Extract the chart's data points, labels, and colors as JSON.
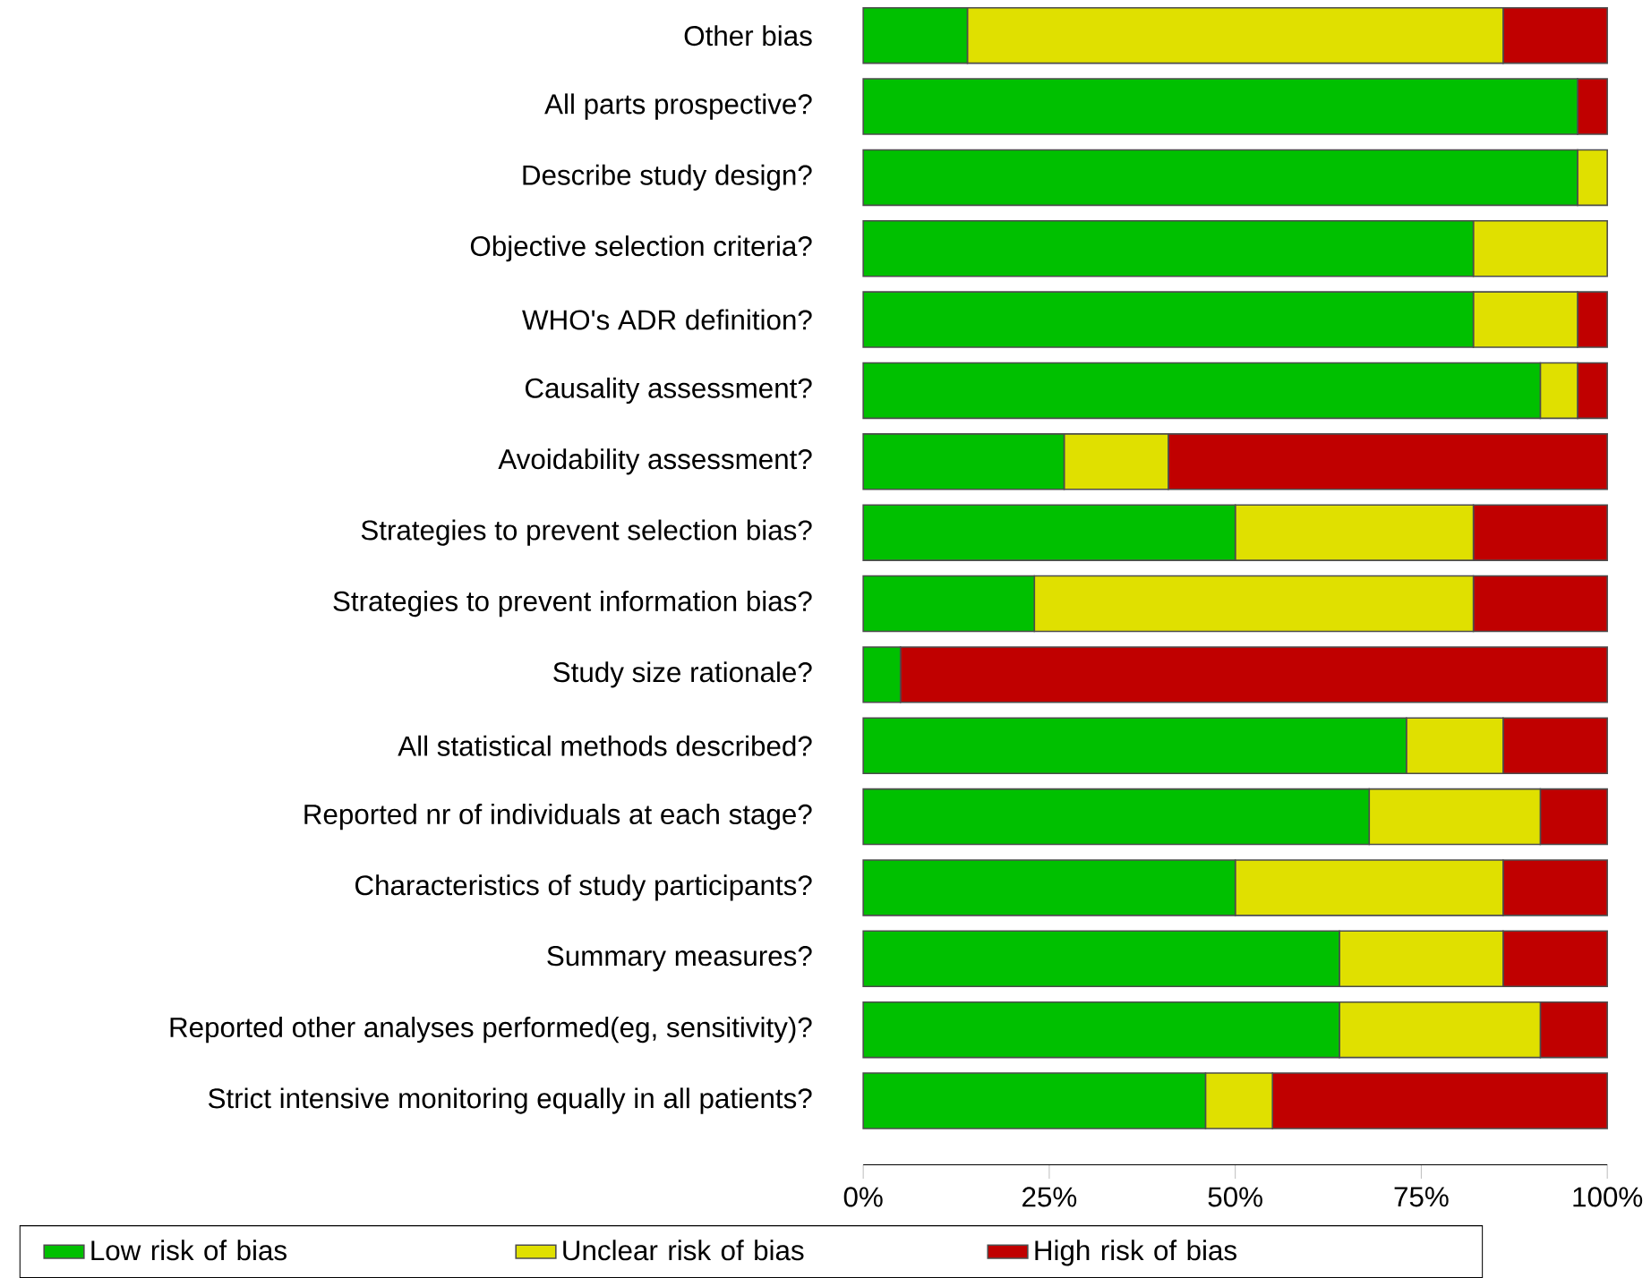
{
  "chart_data": {
    "type": "bar",
    "orientation": "horizontal",
    "stacked": true,
    "legend": "bottom",
    "categories": [
      "Other bias",
      "All parts prospective?",
      "Describe study design?",
      "Objective selection criteria?",
      "WHO's ADR definition?",
      "Causality assessment?",
      "Avoidability assessment?",
      "Strategies to prevent selection bias?",
      "Strategies to prevent information bias?",
      "Study size rationale?",
      "All statistical methods described?",
      "Reported nr of individuals at each stage?",
      "Characteristics of study participants?",
      "Summary measures?",
      "Reported other analyses performed(eg, sensitivity)?",
      "Strict intensive monitoring equally in all patients?"
    ],
    "series": [
      {
        "name": "Low risk of bias",
        "color": "#00c000",
        "values": [
          14,
          96,
          96,
          82,
          82,
          91,
          27,
          50,
          23,
          5,
          73,
          68,
          50,
          64,
          64,
          46
        ]
      },
      {
        "name": "Unclear risk of bias",
        "color": "#e0e000",
        "values": [
          72,
          0,
          4,
          18,
          14,
          5,
          14,
          32,
          59,
          0,
          13,
          23,
          36,
          22,
          27,
          9
        ]
      },
      {
        "name": "High risk of bias",
        "color": "#c00000",
        "values": [
          14,
          4,
          0,
          0,
          4,
          4,
          59,
          18,
          18,
          95,
          14,
          9,
          14,
          14,
          9,
          45
        ]
      }
    ],
    "xlim": [
      0,
      100
    ],
    "xticks": [
      {
        "value": 0,
        "label": "0%"
      },
      {
        "value": 25,
        "label": "25%"
      },
      {
        "value": 50,
        "label": "50%"
      },
      {
        "value": 75,
        "label": "75%"
      },
      {
        "value": 100,
        "label": "100%"
      }
    ]
  }
}
